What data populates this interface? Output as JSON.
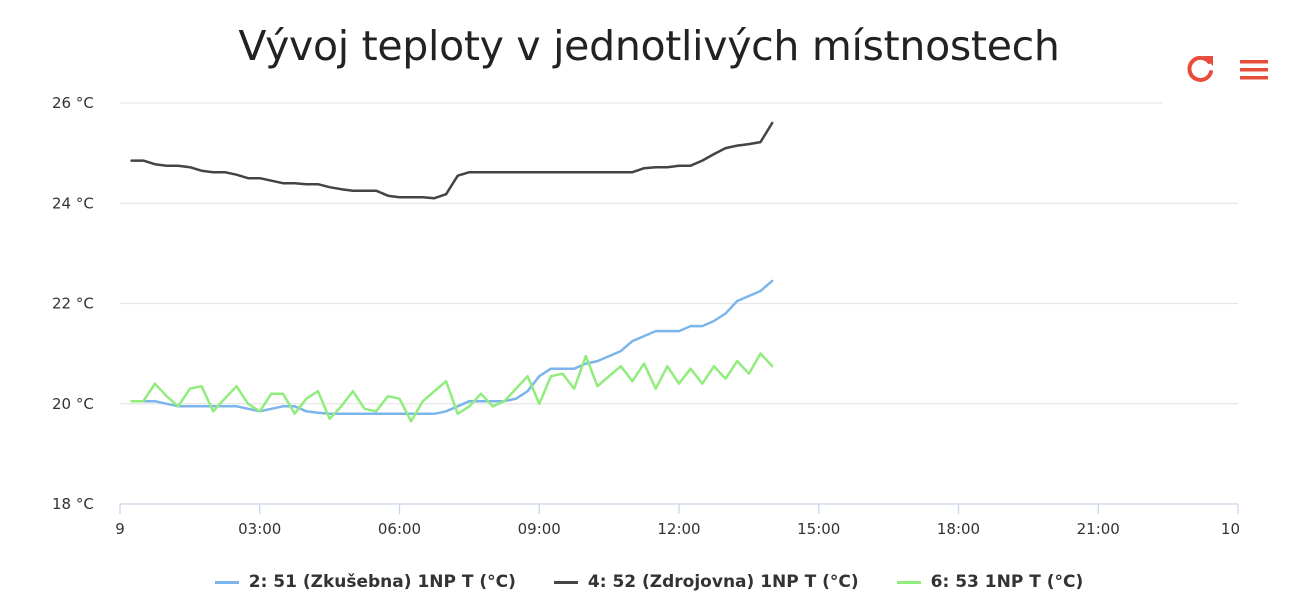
{
  "chart_data": {
    "type": "line",
    "title": "Vývoj teploty v jednotlivých místnostech",
    "xlabel": "",
    "ylabel": "",
    "xlim": [
      0,
      24
    ],
    "ylim": [
      18,
      26
    ],
    "y_ticks": [
      {
        "value": 18,
        "label": "18 °C"
      },
      {
        "value": 20,
        "label": "20 °C"
      },
      {
        "value": 22,
        "label": "22 °C"
      },
      {
        "value": 24,
        "label": "24 °C"
      },
      {
        "value": 26,
        "label": "26 °C"
      }
    ],
    "x_ticks": [
      {
        "value": 0,
        "label": "9"
      },
      {
        "value": 3,
        "label": "03:00"
      },
      {
        "value": 6,
        "label": "06:00"
      },
      {
        "value": 9,
        "label": "09:00"
      },
      {
        "value": 12,
        "label": "12:00"
      },
      {
        "value": 15,
        "label": "15:00"
      },
      {
        "value": 18,
        "label": "18:00"
      },
      {
        "value": 21,
        "label": "21:00"
      },
      {
        "value": 24,
        "label": "10"
      }
    ],
    "grid": true,
    "legend_position": "bottom",
    "series": [
      {
        "name": "2: 51 (Zkušebna) 1NP T (°C)",
        "color": "#7cb5ec",
        "x": [
          0.25,
          0.5,
          0.75,
          1,
          1.25,
          1.5,
          1.75,
          2,
          2.25,
          2.5,
          2.75,
          3,
          3.25,
          3.5,
          3.75,
          4,
          4.25,
          4.5,
          4.75,
          5,
          5.25,
          5.5,
          5.75,
          6,
          6.25,
          6.5,
          6.75,
          7,
          7.25,
          7.5,
          7.75,
          8,
          8.25,
          8.5,
          8.75,
          9,
          9.25,
          9.5,
          9.75,
          10,
          10.25,
          10.5,
          10.75,
          11,
          11.25,
          11.5,
          11.75,
          12,
          12.25,
          12.5,
          12.75,
          13,
          13.25,
          13.5,
          13.75,
          14
        ],
        "y": [
          20.05,
          20.05,
          20.05,
          20.0,
          19.95,
          19.95,
          19.95,
          19.95,
          19.95,
          19.95,
          19.9,
          19.85,
          19.9,
          19.95,
          19.95,
          19.85,
          19.82,
          19.8,
          19.8,
          19.8,
          19.8,
          19.8,
          19.8,
          19.8,
          19.8,
          19.8,
          19.8,
          19.85,
          19.95,
          20.05,
          20.05,
          20.05,
          20.05,
          20.1,
          20.25,
          20.55,
          20.7,
          20.7,
          20.7,
          20.8,
          20.85,
          20.95,
          21.05,
          21.25,
          21.35,
          21.45,
          21.45,
          21.45,
          21.55,
          21.55,
          21.65,
          21.8,
          22.05,
          22.15,
          22.25,
          22.45
        ]
      },
      {
        "name": "4: 52 (Zdrojovna) 1NP T (°C)",
        "color": "#434348",
        "x": [
          0.25,
          0.5,
          0.75,
          1,
          1.25,
          1.5,
          1.75,
          2,
          2.25,
          2.5,
          2.75,
          3,
          3.25,
          3.5,
          3.75,
          4,
          4.25,
          4.5,
          4.75,
          5,
          5.25,
          5.5,
          5.75,
          6,
          6.25,
          6.5,
          6.75,
          7,
          7.25,
          7.5,
          7.75,
          8,
          8.25,
          8.5,
          8.75,
          9,
          9.25,
          9.5,
          9.75,
          10,
          10.25,
          10.5,
          10.75,
          11,
          11.25,
          11.5,
          11.75,
          12,
          12.25,
          12.5,
          12.75,
          13,
          13.25,
          13.5,
          13.75,
          14
        ],
        "y": [
          24.85,
          24.85,
          24.78,
          24.75,
          24.75,
          24.72,
          24.65,
          24.62,
          24.62,
          24.57,
          24.5,
          24.5,
          24.45,
          24.4,
          24.4,
          24.38,
          24.38,
          24.32,
          24.28,
          24.25,
          24.25,
          24.25,
          24.15,
          24.12,
          24.12,
          24.12,
          24.1,
          24.18,
          24.55,
          24.62,
          24.62,
          24.62,
          24.62,
          24.62,
          24.62,
          24.62,
          24.62,
          24.62,
          24.62,
          24.62,
          24.62,
          24.62,
          24.62,
          24.62,
          24.7,
          24.72,
          24.72,
          24.75,
          24.75,
          24.85,
          24.98,
          25.1,
          25.15,
          25.18,
          25.22,
          25.6
        ]
      },
      {
        "name": "6: 53 1NP T (°C)",
        "color": "#90ed7d",
        "x": [
          0.25,
          0.5,
          0.75,
          1,
          1.25,
          1.5,
          1.75,
          2,
          2.25,
          2.5,
          2.75,
          3,
          3.25,
          3.5,
          3.75,
          4,
          4.25,
          4.5,
          4.75,
          5,
          5.25,
          5.5,
          5.75,
          6,
          6.25,
          6.5,
          6.75,
          7,
          7.25,
          7.5,
          7.75,
          8,
          8.25,
          8.5,
          8.75,
          9,
          9.25,
          9.5,
          9.75,
          10,
          10.25,
          10.5,
          10.75,
          11,
          11.25,
          11.5,
          11.75,
          12,
          12.25,
          12.5,
          12.75,
          13,
          13.25,
          13.5,
          13.75,
          14
        ],
        "y": [
          20.05,
          20.05,
          20.4,
          20.15,
          19.95,
          20.3,
          20.35,
          19.85,
          20.1,
          20.35,
          20.0,
          19.85,
          20.2,
          20.2,
          19.8,
          20.1,
          20.25,
          19.7,
          19.95,
          20.25,
          19.9,
          19.85,
          20.15,
          20.1,
          19.65,
          20.05,
          20.25,
          20.45,
          19.8,
          19.95,
          20.2,
          19.95,
          20.05,
          20.3,
          20.55,
          20.0,
          20.55,
          20.6,
          20.3,
          20.95,
          20.35,
          20.55,
          20.75,
          20.45,
          20.8,
          20.3,
          20.75,
          20.4,
          20.7,
          20.4,
          20.75,
          20.5,
          20.85,
          20.6,
          21.0,
          20.75
        ]
      }
    ]
  },
  "toolbar": {
    "refresh_icon": "refresh-icon",
    "menu_icon": "menu-icon",
    "accent_color": "#e74c3c"
  }
}
